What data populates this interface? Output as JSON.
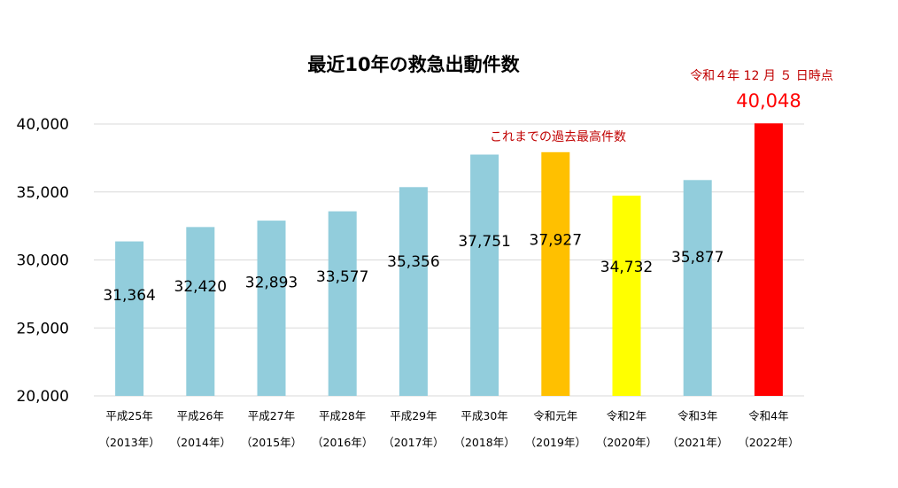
{
  "chart_data": {
    "type": "bar",
    "title": "最近10年の救急出動件数",
    "categories": [
      "平成25年",
      "平成26年",
      "平成27年",
      "平成28年",
      "平成29年",
      "平成30年",
      "令和元年",
      "令和2年",
      "令和3年",
      "令和4年"
    ],
    "categories_years": [
      "（2013年）",
      "（2014年）",
      "（2015年）",
      "（2016年）",
      "（2017年）",
      "（2018年）",
      "（2019年）",
      "（2020年）",
      "（2021年）",
      "（2022年）"
    ],
    "values": [
      31364,
      32420,
      32893,
      33577,
      35356,
      37751,
      37927,
      34732,
      35877,
      40048
    ],
    "value_labels": [
      "31,364",
      "32,420",
      "32,893",
      "33,577",
      "35,356",
      "37,751",
      "37,927",
      "34,732",
      "35,877",
      "40,048"
    ],
    "bar_colors": [
      "#92CDDC",
      "#92CDDC",
      "#92CDDC",
      "#92CDDC",
      "#92CDDC",
      "#92CDDC",
      "#FFC000",
      "#FFFF00",
      "#92CDDC",
      "#FF0000"
    ],
    "ylim": [
      20000,
      40000
    ],
    "yticks": [
      20000,
      25000,
      30000,
      35000,
      40000
    ],
    "ytick_labels": [
      "20,000",
      "25,000",
      "30,000",
      "35,000",
      "40,000"
    ],
    "grid": true,
    "legend": "none",
    "xlabel": "",
    "ylabel": "",
    "annotations": {
      "record_note": "これまでの過去最高件数",
      "latest_note": "令和４年 12 月 ５ 日時点",
      "latest_value": "40,048"
    },
    "annotation_color": "#C00000",
    "latest_value_color": "#FF0000",
    "gridline_color": "#D9D9D9"
  }
}
